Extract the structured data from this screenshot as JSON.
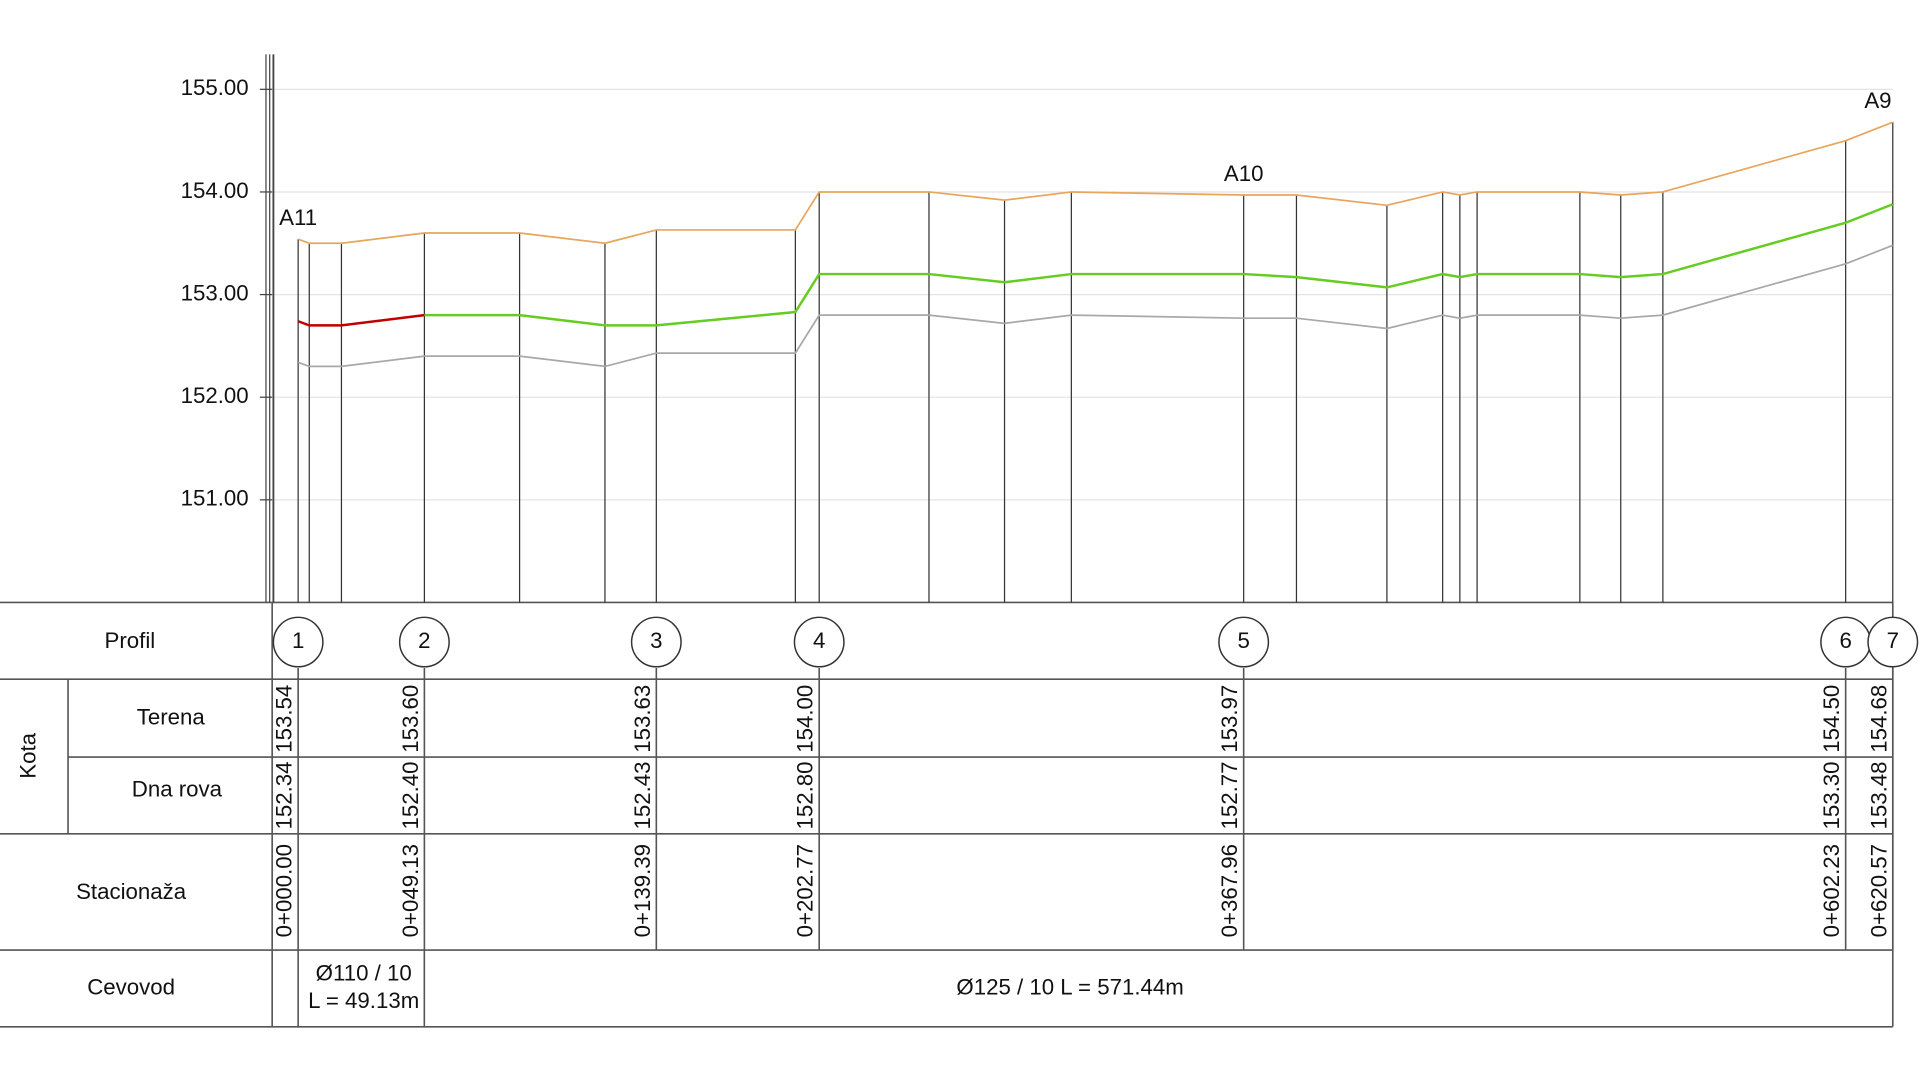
{
  "chart_data": {
    "type": "line",
    "x": [
      0,
      4.33,
      16.85,
      49.13,
      86.18,
      119.4,
      139.39,
      193.5,
      202.77,
      245.5,
      274.9,
      300.9,
      367.96,
      388.5,
      423.7,
      445.4,
      452.1,
      458.8,
      498.8,
      514.7,
      531.1,
      602.23,
      620.57
    ],
    "series": [
      {
        "color": "#e8a55c",
        "values": [
          153.54,
          153.5,
          153.5,
          153.6,
          153.6,
          153.5,
          153.63,
          153.63,
          154.0,
          154.0,
          153.92,
          154.0,
          153.97,
          153.97,
          153.87,
          154.0,
          153.97,
          154.0,
          154.0,
          153.97,
          154.0,
          154.5,
          154.68
        ]
      },
      {
        "color": "#a8a8a8",
        "values": [
          152.34,
          152.3,
          152.3,
          152.4,
          152.4,
          152.3,
          152.43,
          152.43,
          152.8,
          152.8,
          152.72,
          152.8,
          152.77,
          152.77,
          152.67,
          152.8,
          152.77,
          152.8,
          152.8,
          152.77,
          152.8,
          153.3,
          153.48
        ]
      },
      {
        "color": "#c00000",
        "values": [
          152.74,
          152.7,
          152.7,
          152.8,
          null,
          null,
          null,
          null,
          null,
          null,
          null,
          null,
          null,
          null,
          null,
          null,
          null,
          null,
          null,
          null,
          null,
          null,
          null
        ]
      },
      {
        "color": "#66cc22",
        "values": [
          null,
          null,
          null,
          152.8,
          152.8,
          152.7,
          152.7,
          152.83,
          153.2,
          153.2,
          153.12,
          153.2,
          153.2,
          153.17,
          153.07,
          153.2,
          153.17,
          153.2,
          153.2,
          153.17,
          153.2,
          153.7,
          153.88
        ]
      }
    ],
    "ylim": [
      150,
      155.34
    ],
    "yticks": [
      {
        "value": 151,
        "label": "151.00"
      },
      {
        "value": 152,
        "label": "152.00"
      },
      {
        "value": 153,
        "label": "153.00"
      },
      {
        "value": 154,
        "label": "154.00"
      },
      {
        "value": 155,
        "label": "155.00"
      }
    ],
    "grid": true,
    "annotations": [
      {
        "text": "A11",
        "x": 0
      },
      {
        "text": "A10",
        "x": 367.96
      },
      {
        "text": "A9",
        "x": 620.57
      }
    ]
  },
  "table": {
    "headers": {
      "profile": "Profil",
      "elevation": "Kota",
      "terrain": "Terena",
      "bottom": "Dna rova",
      "station": "Stacionaža",
      "pipe": "Cevovod"
    },
    "profiles": [
      {
        "number": 1,
        "terrain": "153.54",
        "bottom": "152.34",
        "station": "0+000.00"
      },
      {
        "number": 2,
        "terrain": "153.60",
        "bottom": "152.40",
        "station": "0+049.13"
      },
      {
        "number": 3,
        "terrain": "153.63",
        "bottom": "152.43",
        "station": "0+139.39"
      },
      {
        "number": 4,
        "terrain": "154.00",
        "bottom": "152.80",
        "station": "0+202.77"
      },
      {
        "number": 5,
        "terrain": "153.97",
        "bottom": "152.77",
        "station": "0+367.96"
      },
      {
        "number": 6,
        "terrain": "154.50",
        "bottom": "153.30",
        "station": "0+602.23"
      },
      {
        "number": 7,
        "terrain": "154.68",
        "bottom": "153.48",
        "station": "0+620.57"
      }
    ],
    "pipes": [
      {
        "lines": [
          "Ø110 / 10",
          "L = 49.13m"
        ]
      },
      {
        "lines": [
          "Ø125 / 10  L = 571.44m"
        ]
      }
    ]
  }
}
